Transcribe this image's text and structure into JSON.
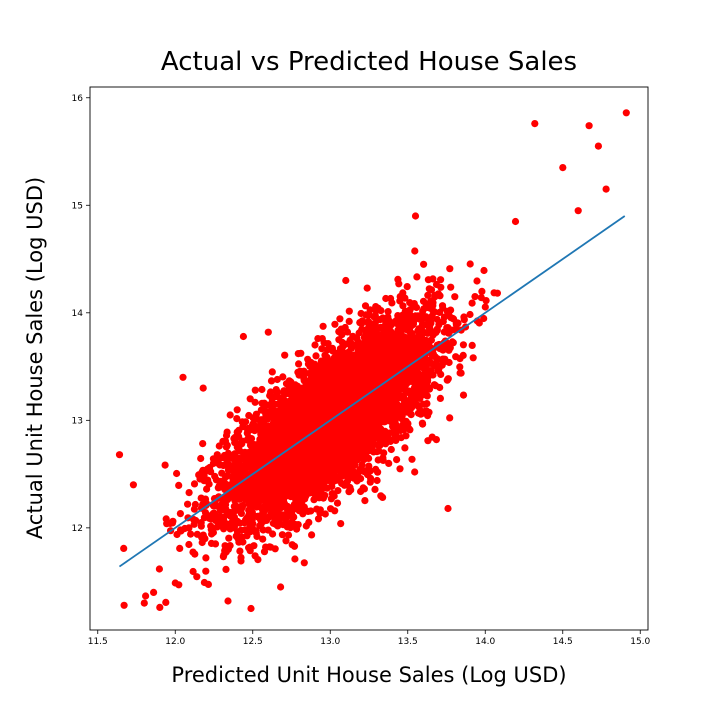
{
  "chart_data": {
    "type": "scatter",
    "title": "Actual vs Predicted House Sales",
    "xlabel": "Predicted Unit House Sales (Log USD)",
    "ylabel": "Actual Unit House Sales (Log USD)",
    "xlim": [
      11.45,
      15.05
    ],
    "ylim": [
      11.05,
      16.1
    ],
    "x_ticks": [
      "11.5",
      "12.0",
      "12.5",
      "13.0",
      "13.5",
      "14.0",
      "14.5",
      "15.0"
    ],
    "y_ticks": [
      "12",
      "13",
      "14",
      "15",
      "16"
    ],
    "grid": false,
    "point_color": "#ff0000",
    "line_color": "#1f77b4",
    "fit_line": {
      "x": [
        11.64,
        14.9
      ],
      "y": [
        11.64,
        14.9
      ]
    },
    "cloud": {
      "n_points": 6000,
      "x_mean": 13.0,
      "x_sd": 0.33,
      "residual_sd": 0.3,
      "x_range": [
        11.64,
        14.9
      ],
      "y_range": [
        11.25,
        15.85
      ]
    },
    "outliers": [
      {
        "x": 11.64,
        "y": 12.68
      },
      {
        "x": 11.67,
        "y": 11.28
      },
      {
        "x": 11.73,
        "y": 12.4
      },
      {
        "x": 11.8,
        "y": 11.3
      },
      {
        "x": 11.86,
        "y": 11.4
      },
      {
        "x": 11.9,
        "y": 11.26
      },
      {
        "x": 12.05,
        "y": 13.4
      },
      {
        "x": 12.18,
        "y": 13.3
      },
      {
        "x": 12.34,
        "y": 11.32
      },
      {
        "x": 12.44,
        "y": 13.78
      },
      {
        "x": 12.6,
        "y": 13.82
      },
      {
        "x": 12.68,
        "y": 11.45
      },
      {
        "x": 13.1,
        "y": 14.3
      },
      {
        "x": 13.55,
        "y": 14.9
      },
      {
        "x": 13.76,
        "y": 12.18
      },
      {
        "x": 14.32,
        "y": 15.76
      },
      {
        "x": 14.5,
        "y": 15.35
      },
      {
        "x": 14.6,
        "y": 14.95
      },
      {
        "x": 14.67,
        "y": 15.74
      },
      {
        "x": 14.73,
        "y": 15.55
      },
      {
        "x": 14.78,
        "y": 15.15
      },
      {
        "x": 14.91,
        "y": 15.86
      }
    ]
  }
}
